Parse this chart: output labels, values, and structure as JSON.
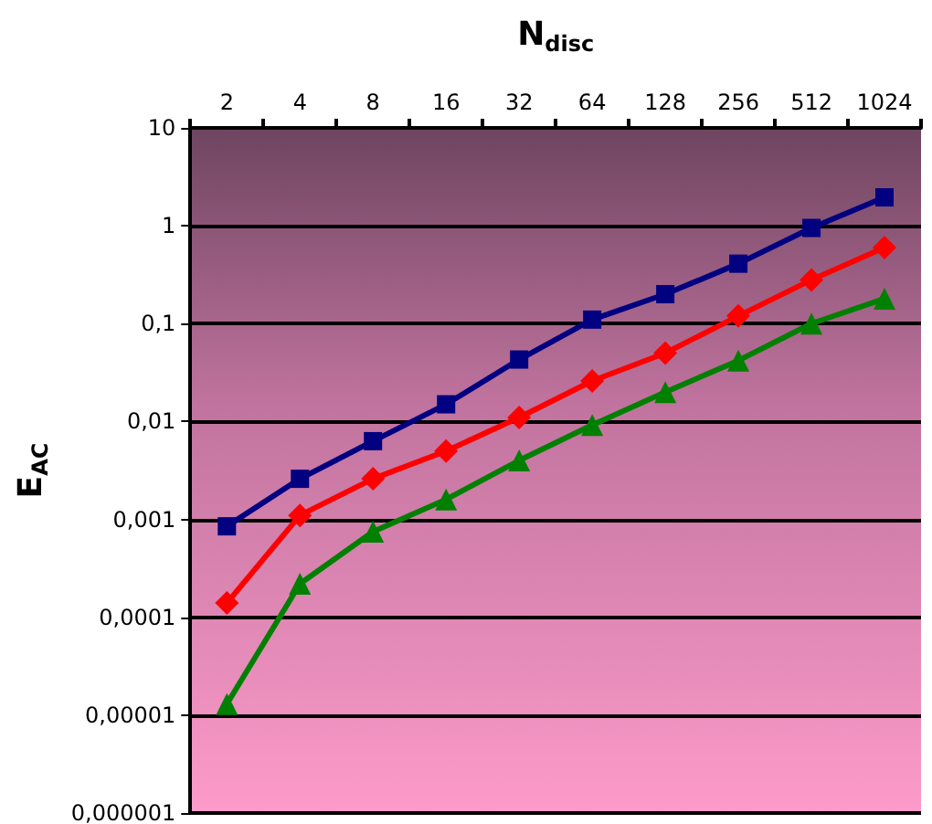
{
  "chart_data": {
    "type": "line",
    "xlabel": "N$_{disc}$",
    "ylabel": "E$_{AC}$",
    "categories": [
      "2",
      "4",
      "8",
      "16",
      "32",
      "64",
      "128",
      "256",
      "512",
      "1024"
    ],
    "series": [
      {
        "color": "#000080",
        "marker": "square",
        "values": [
          0.00085,
          0.0026,
          0.0063,
          0.015,
          0.043,
          0.11,
          0.2,
          0.41,
          0.95,
          1.95
        ]
      },
      {
        "color": "#ff0000",
        "marker": "diamond",
        "values": [
          0.00014,
          0.0011,
          0.0026,
          0.005,
          0.011,
          0.026,
          0.05,
          0.12,
          0.28,
          0.6
        ]
      },
      {
        "color": "#008000",
        "marker": "triangle",
        "values": [
          1.3e-05,
          0.00022,
          0.00075,
          0.0016,
          0.004,
          0.0092,
          0.02,
          0.042,
          0.1,
          0.18
        ]
      }
    ],
    "log": "y",
    "ylim": [
      1e-06,
      10
    ],
    "yticks": [
      {
        "value": 1e-06,
        "label": "0,000001"
      },
      {
        "value": 1e-05,
        "label": "0,00001"
      },
      {
        "value": 0.0001,
        "label": "0,0001"
      },
      {
        "value": 0.001,
        "label": "0,001"
      },
      {
        "value": 0.01,
        "label": "0,01"
      },
      {
        "value": 0.1,
        "label": "0,1"
      },
      {
        "value": 1,
        "label": "1"
      },
      {
        "value": 10,
        "label": "10"
      }
    ],
    "grid": "y"
  }
}
